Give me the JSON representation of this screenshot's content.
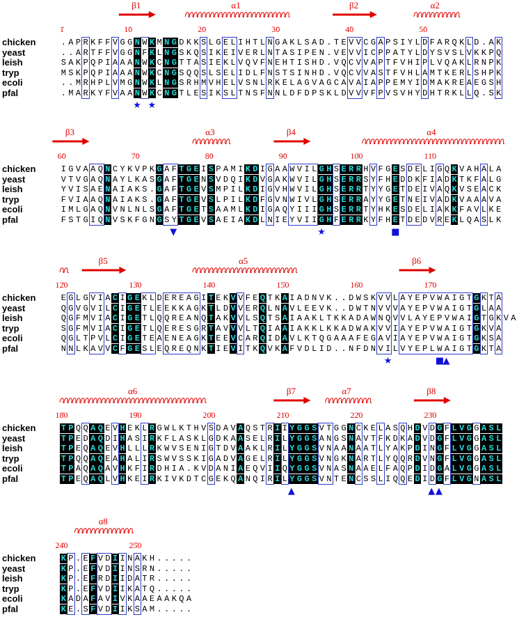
{
  "seqnames": [
    "chicken",
    "yeast",
    "leish",
    "tryp",
    "ecoli",
    "pfal"
  ],
  "blocks": [
    {
      "start": 1,
      "numbers": [
        1,
        10,
        20,
        30,
        40,
        50
      ],
      "sequences": [
        ".APRKFFVGGNWKMNGDKKSLGELIHTLNGAKLSAD.TEVVCGAPSIYLDFARQKLD.AK",
        "..ARTFFVGGNFKLNGSKQSIKEIVERLNTASIPEN.VEVVICPPATYLDYSVSLVKKPQ",
        "SAKPQPIAAANWKCNGTTASIEKLVQVFNEHTISHD.VQCVVAPTFVHIPLVQAKLRNPK",
        "MSKPQPIAAANWKCNGSQQSLSELIDLFNSTSINHD.VQCVVASTFVHLAMTKERLSHPK",
        "..MRHPLVMGNWKLNGSRHMVHELVSNLRKELAGVAGCAVAIAPPEMYIDMAKREAEGSH",
        ".MARKYFVAANWKCNGTLESIKSLTNSFNNLDFDPSKLDVVVFPVSVHYDHTRKLLQ.SK"
      ],
      "secondary": [
        {
          "type": "beta",
          "label": "β1",
          "from": 9,
          "to": 13
        },
        {
          "type": "alpha",
          "label": "α1",
          "from": 18,
          "to": 31
        },
        {
          "type": "beta",
          "label": "β2",
          "from": 38,
          "to": 43
        },
        {
          "type": "alpha",
          "label": "α2",
          "from": 49,
          "to": 54
        }
      ],
      "markers": [
        {
          "symbol": "★",
          "pos": 11
        },
        {
          "symbol": "★",
          "pos": 13
        }
      ]
    },
    {
      "start": 60,
      "numbers": [
        60,
        70,
        80,
        90,
        100,
        110
      ],
      "sequences": [
        "IGVAAQNCYKVPKGAFTGEISPAMIKDIGAAWVILGHSERRHVFGESDELIGQKVAHALA",
        "VTVGAQNAYLKASGAFTGENSVDQIKDVGAKWVILGHSERRSYFHEDDKFIADKTKFALG",
        "YVISAENAIAKS.GAFTGEVSMPILKDIGVHWVILGHSERRTYYGETDEIVAQKVSEACK",
        "FVIAAQNAIAKS.GAFTGEVSLPILKDFGVNWIVLGHSERRAYYGETNEIVADKVAAAVA",
        "IMLGAQNVNLNLSGAFTGETSAAMLKDIGAQYIIIGHSERRTYHKESDELIAKKFAVLKE",
        "FSTGIQNVSKFGNGSYTGEVSAEIAKDLNIEYVIIGHFERRKYFHETDEDVREKLQASLK"
      ],
      "secondary": [
        {
          "type": "beta",
          "label": "β3",
          "from": 59,
          "to": 63
        },
        {
          "type": "alpha",
          "label": "α3",
          "from": 78,
          "to": 82
        },
        {
          "type": "beta",
          "label": "β4",
          "from": 89,
          "to": 93
        },
        {
          "type": "alpha",
          "label": "α4",
          "from": 101,
          "to": 119
        }
      ],
      "markers": [
        {
          "symbol": "▼",
          "pos": 75
        },
        {
          "symbol": "★",
          "pos": 95
        },
        {
          "symbol": "■",
          "pos": 105
        }
      ]
    },
    {
      "start": 120,
      "numbers": [
        120,
        130,
        140,
        150,
        160,
        170
      ],
      "sequences": [
        "EGLGVIACIGEKLDEREAGITEKVVFEQTKAIADNVK..DWSKVVLAYEPVWAIGTGKTA",
        "QGVGVILCIGETLEEKKAGKTLDVVERQLNAVLEEVK..DWTNVVVAYEPVWAIGTGLAA",
        "QGFMVIACIGETLQQREANQTAKVVLSQTSAIAAKLTKKADAWNQVVLAYEPVWAIGTGKVA",
        "SGFMVIACIGETLQERESGRTAVVVLTQIAAIAKKLKKADWAKVVIAYEPVWAIGTGKVA",
        "QGLTPVLCIGETEAENEAGKTEEVCARQIDAVLKTQGAAAFEGAVIAYEPVWAIGTGKSA",
        "NNLKAVVCFGESLEQREQNKTIEVITKQVKAFVDLID..NFDNVILVYEPLWAIGTGKTA"
      ],
      "secondary": [
        {
          "type": "alpha",
          "label": "",
          "from": 120,
          "to": 120
        },
        {
          "type": "beta",
          "label": "β5",
          "from": 123,
          "to": 128
        },
        {
          "type": "alpha",
          "label": "α5",
          "from": 138,
          "to": 151
        },
        {
          "type": "beta",
          "label": "β6",
          "from": 166,
          "to": 170
        }
      ],
      "markers": [
        {
          "symbol": "★",
          "pos": 164
        },
        {
          "symbol": "■",
          "pos": 171
        },
        {
          "symbol": "▲",
          "pos": 172
        }
      ]
    },
    {
      "start": 180,
      "numbers": [
        180,
        190,
        200,
        210,
        220,
        230
      ],
      "sequences": [
        "TPQQAQEVHEKLRGWLKTHVSDAVAQSTRIIYGGSVTGGNCKELASQHDVDGFLVGGASL",
        "TPEDAQDIHASIRKFLASKLGDKAASELRILYGGSANGSNAVTFKDKADVDGFLVGGASL",
        "TPEQAQEVHLLLRKWVSENIGTDVAAKLRILYGGSVNAANAATLYAKPDINGFLVGGASL",
        "TPQQAQEAHALIRSWVSSKIGADVAGELRILYGGSVNGKNARTLYQQRDVNGFLVGGASL",
        "TPAQAQAVHKFIRDHIA.KVDANIAEQVIIQYGGSVNASNAAELFAQPDIDGALVGGASL",
        "TPEQAQLVHKEIRKIVKDTCGEKQANQIRILYGGSVNTENCSSLIQQEDIDGFLVGNASL"
      ],
      "secondary": [
        {
          "type": "alpha",
          "label": "α6",
          "from": 180,
          "to": 199
        },
        {
          "type": "beta",
          "label": "β7",
          "from": 209,
          "to": 213
        },
        {
          "type": "alpha",
          "label": "α7",
          "from": 216,
          "to": 221
        },
        {
          "type": "beta",
          "label": "β8",
          "from": 228,
          "to": 232
        }
      ],
      "markers": [
        {
          "symbol": "▲",
          "pos": 211
        },
        {
          "symbol": "▲",
          "pos": 230
        },
        {
          "symbol": "▲",
          "pos": 231
        }
      ]
    },
    {
      "start": 240,
      "numbers": [
        240,
        250
      ],
      "sequences": [
        "KP.EFVDIINAKH.....",
        "KP.EFVDIINSRN.....",
        "KP.EFRDIIDATR.....",
        "KP.EFVDIIKATQ.....",
        "KADAFAVIVKAAEAAKQA",
        "KE.SFVDIIKSAM....."
      ],
      "secondary": [
        {
          "type": "alpha",
          "label": "α8",
          "from": 242,
          "to": 249
        }
      ],
      "markers": []
    }
  ],
  "colors": {
    "identical_bg": "#000000",
    "identical_fg": "#28d8d8",
    "box": "#2a3ac8",
    "ss": "#e00000",
    "marker": "#1010d8"
  }
}
